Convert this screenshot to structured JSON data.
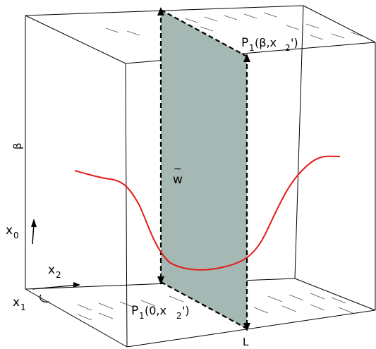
{
  "labels": {
    "beta": "β",
    "x0": "x",
    "x0_sub": "0",
    "x1": "x",
    "x1_sub": "1",
    "x2": "x",
    "x2_sub": "2",
    "w_tilde": "w",
    "w_tilde_accent": "~",
    "p_top_main": "P",
    "p_top_sub": "1",
    "p_top_args": "(β,x",
    "p_top_args_sub": "2",
    "p_top_close": "')",
    "p_bottom_main": "P",
    "p_bottom_sub": "1",
    "p_bottom_args": "(0,x",
    "p_bottom_args_sub": "2",
    "p_bottom_close": "')",
    "l_label": "L"
  },
  "colors": {
    "box_line": "#000000",
    "plane_fill": "#a5b8b4",
    "curve": "#e31a1a",
    "hatch": "#555555"
  }
}
